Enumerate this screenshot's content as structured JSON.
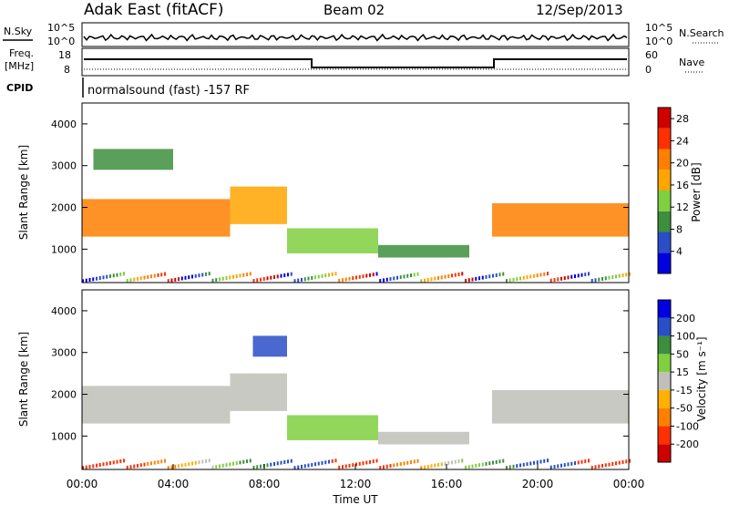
{
  "header": {
    "station": "Adak East (fitACF)",
    "beam": "Beam 02",
    "date": "12/Sep/2013"
  },
  "left_labels": {
    "nsky": "N.Sky",
    "freq_line1": "Freq.",
    "freq_line2": "[MHz]",
    "cpid": "CPID"
  },
  "right_labels": {
    "nsearch": "N.Search",
    "nave": "Nave"
  },
  "cpid_text": "normalsound (fast) -157 RF",
  "noise_axis": {
    "top": "10^5",
    "bottom": "10^0"
  },
  "freq_axis": {
    "top": "18",
    "bottom": "8"
  },
  "nave_axis": {
    "top": "60",
    "bottom": "0"
  },
  "colors": {
    "power_scale": [
      "#0000e0",
      "#2a4ec8",
      "#3d8f3d",
      "#7fcf3f",
      "#ffa500",
      "#ff7f00",
      "#ff3000",
      "#d00000"
    ],
    "velocity_scale": [
      "#d00000",
      "#ff3000",
      "#ff8000",
      "#ffb000",
      "#c0c0b8",
      "#7fcf3f",
      "#3d8f3d",
      "#2a4ec8",
      "#0000e0"
    ]
  },
  "chart_data": [
    {
      "type": "heatmap",
      "name": "power",
      "xlabel": "",
      "ylabel": "Slant Range [km]",
      "yticks": [
        "1000",
        "2000",
        "3000",
        "4000"
      ],
      "ylim": [
        200,
        4500
      ],
      "colorbar": {
        "label": "Power [dB]",
        "ticks": [
          "4",
          "8",
          "12",
          "16",
          "20",
          "24",
          "28"
        ],
        "range": [
          0,
          30
        ]
      },
      "bands": [
        {
          "t0": 0,
          "t1": 6.5,
          "r0": 1300,
          "r1": 2200,
          "value": 22
        },
        {
          "t0": 6.5,
          "t1": 9,
          "r0": 1600,
          "r1": 2500,
          "value": 18
        },
        {
          "t0": 9,
          "t1": 13,
          "r0": 900,
          "r1": 1500,
          "value": 14
        },
        {
          "t0": 13,
          "t1": 17,
          "r0": 800,
          "r1": 1100,
          "value": 10
        },
        {
          "t0": 18,
          "t1": 24,
          "r0": 1300,
          "r1": 2100,
          "value": 22
        },
        {
          "t0": 0.5,
          "t1": 4,
          "r0": 2900,
          "r1": 3400,
          "value": 8
        }
      ]
    },
    {
      "type": "heatmap",
      "name": "velocity",
      "xlabel": "Time UT",
      "ylabel": "Slant Range [km]",
      "yticks": [
        "1000",
        "2000",
        "3000",
        "4000"
      ],
      "ylim": [
        200,
        4500
      ],
      "xticks": [
        "00:00",
        "04:00",
        "08:00",
        "12:00",
        "16:00",
        "20:00",
        "00:00"
      ],
      "colorbar": {
        "label": "Velocity [m s⁻¹]",
        "ticks": [
          "200",
          "100",
          "50",
          "15",
          "-15",
          "-50",
          "-100",
          "-200"
        ]
      },
      "bands": [
        {
          "t0": 0,
          "t1": 6.5,
          "r0": 1300,
          "r1": 2200,
          "value": 0
        },
        {
          "t0": 6.5,
          "t1": 9,
          "r0": 1600,
          "r1": 2500,
          "value": 0
        },
        {
          "t0": 9,
          "t1": 13,
          "r0": 900,
          "r1": 1500,
          "value": 40
        },
        {
          "t0": 13,
          "t1": 17,
          "r0": 800,
          "r1": 1100,
          "value": 0
        },
        {
          "t0": 18,
          "t1": 24,
          "r0": 1300,
          "r1": 2100,
          "value": 0
        },
        {
          "t0": 7.5,
          "t1": 9,
          "r0": 2900,
          "r1": 3400,
          "value": 200
        }
      ]
    }
  ]
}
